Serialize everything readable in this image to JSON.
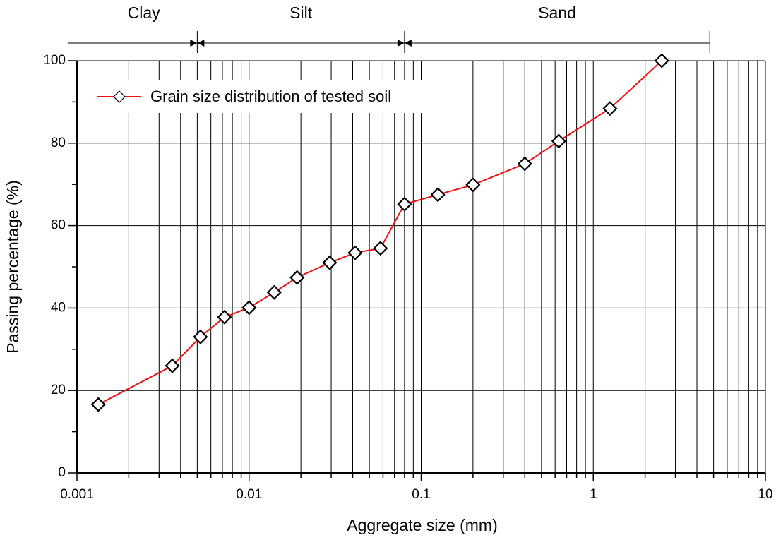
{
  "chart_data": {
    "type": "line",
    "xlabel": "Aggregate size (mm)",
    "ylabel": "Passing percentage (%)",
    "x": [
      0.00133,
      0.00358,
      0.00522,
      0.0072,
      0.01,
      0.014,
      0.019,
      0.0294,
      0.0413,
      0.058,
      0.08,
      0.125,
      0.2,
      0.4,
      0.63,
      1.25,
      2.5
    ],
    "series": [
      {
        "name": "Grain size distribution of tested soil",
        "color": "#ee1111",
        "values": [
          16.6,
          26.0,
          33.0,
          37.8,
          40.1,
          43.8,
          47.4,
          51.0,
          53.4,
          54.5,
          65.2,
          67.5,
          69.9,
          75.0,
          80.5,
          88.4,
          100
        ]
      }
    ],
    "xscale": "log",
    "xlim": [
      0.001,
      10
    ],
    "xticks": [
      0.001,
      0.01,
      0.1,
      1,
      10
    ],
    "ylim": [
      0,
      100
    ],
    "yticks": [
      0,
      20,
      40,
      60,
      80,
      100
    ],
    "grid": true,
    "legend": "upper left",
    "zones": {
      "labels": [
        "Clay",
        "Silt",
        "Sand"
      ],
      "bounds": [
        0.005,
        0.08,
        4.75
      ]
    }
  }
}
